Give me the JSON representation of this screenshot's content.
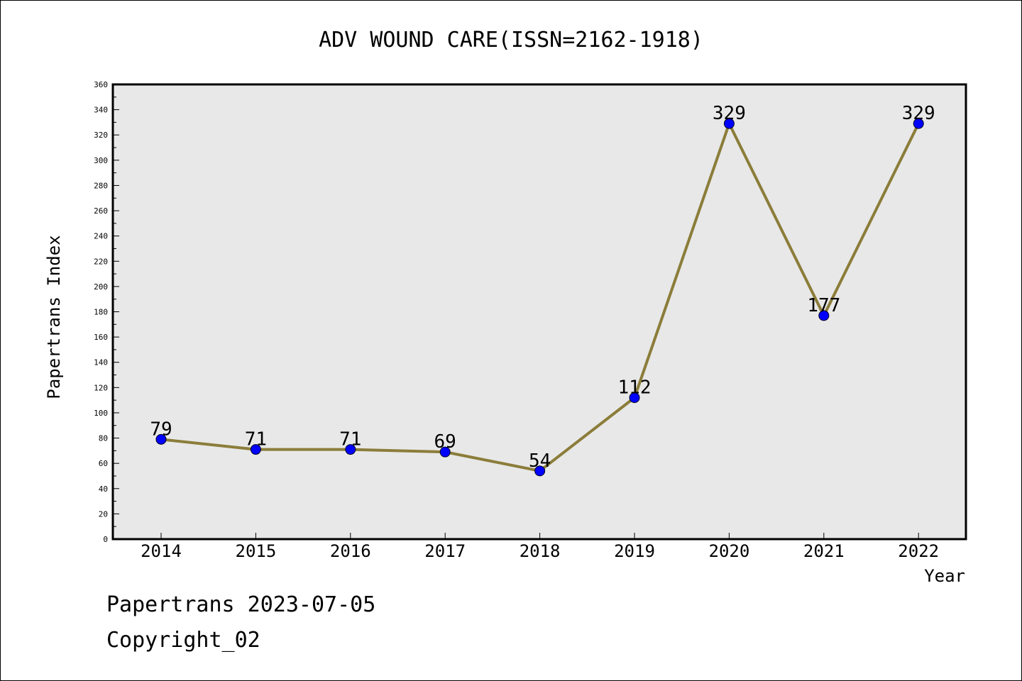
{
  "chart_data": {
    "type": "line",
    "title": "ADV WOUND CARE(ISSN=2162-1918)",
    "xlabel": "Year",
    "ylabel": "Papertrans Index",
    "categories": [
      "2014",
      "2015",
      "2016",
      "2017",
      "2018",
      "2019",
      "2020",
      "2021",
      "2022"
    ],
    "values": [
      79,
      71,
      71,
      69,
      54,
      112,
      329,
      177,
      329
    ],
    "ylim": [
      0,
      360
    ],
    "y_ticks": [
      0,
      20,
      40,
      60,
      80,
      100,
      120,
      140,
      160,
      180,
      200,
      220,
      240,
      260,
      280,
      300,
      320,
      340,
      360
    ],
    "grid": false,
    "legend": "none",
    "colors": {
      "line": "#8b7d3a",
      "marker": "#0000ff",
      "plot_background": "#e8e8e8"
    }
  },
  "footer": {
    "line1": "Papertrans 2023-07-05",
    "line2": "Copyright_02"
  }
}
